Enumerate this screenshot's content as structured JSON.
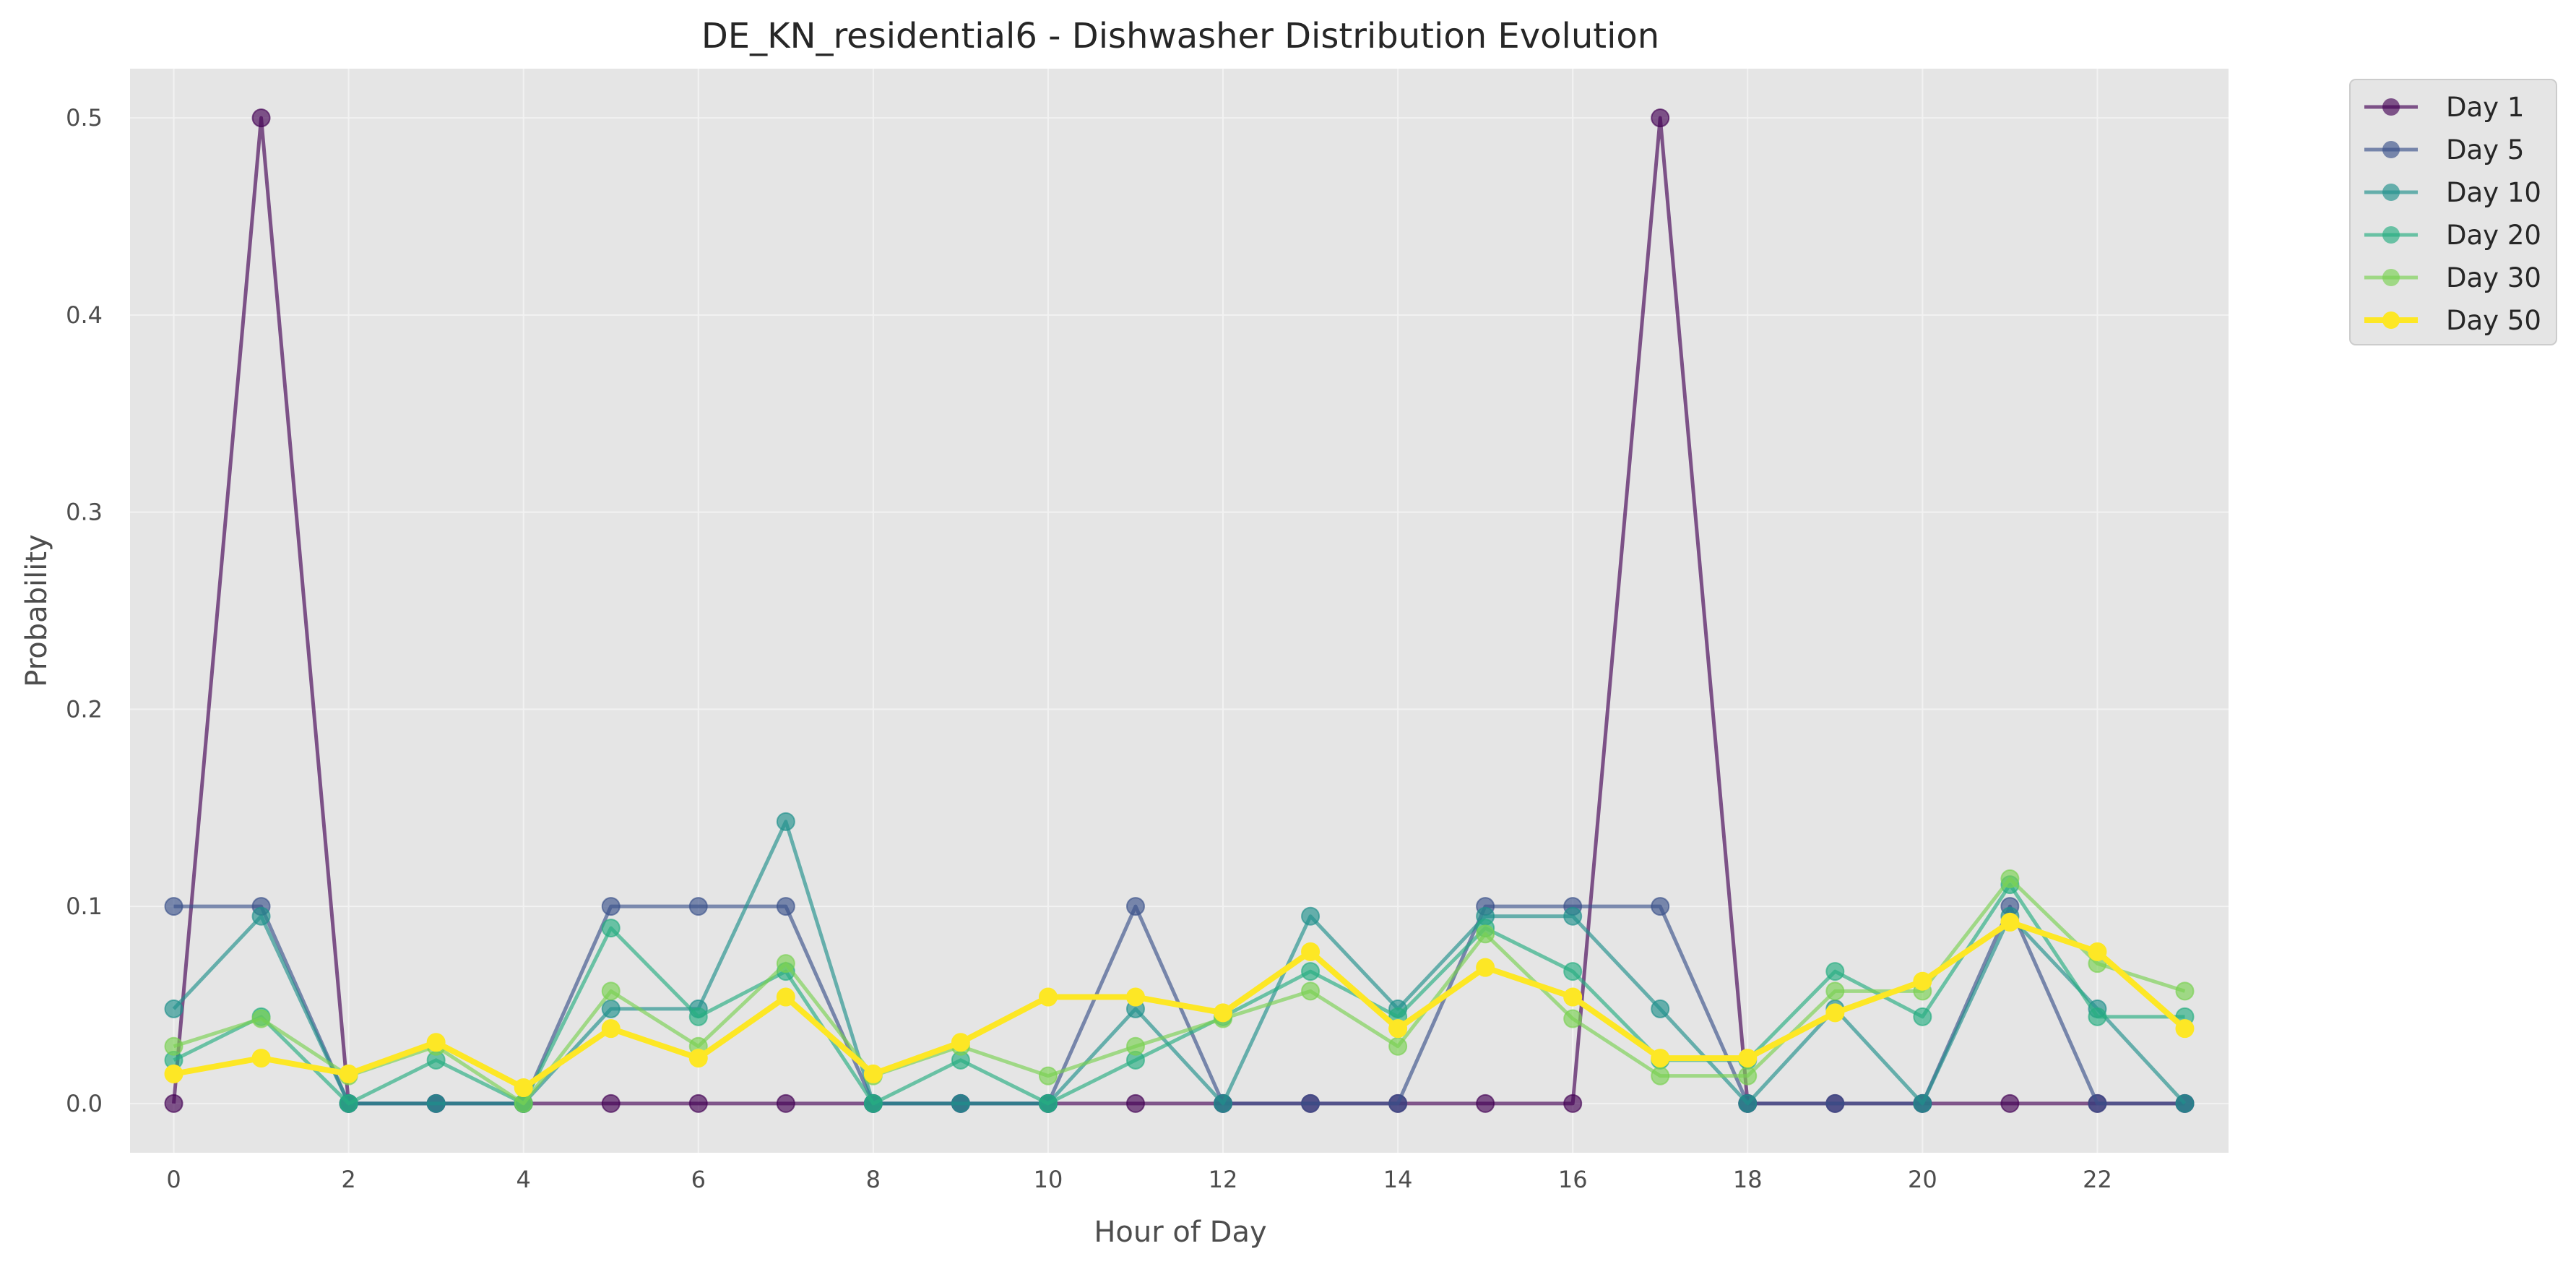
{
  "chart_data": {
    "type": "line",
    "title": "DE_KN_residential6 - Dishwasher Distribution Evolution",
    "xlabel": "Hour of Day",
    "ylabel": "Probability",
    "xlim": [
      -0.5,
      23.5
    ],
    "ylim": [
      -0.025,
      0.525
    ],
    "xticks": [
      0,
      2,
      4,
      6,
      8,
      10,
      12,
      14,
      16,
      18,
      20,
      22
    ],
    "yticks": [
      0.0,
      0.1,
      0.2,
      0.3,
      0.4,
      0.5
    ],
    "grid": true,
    "legend_position": "outside-top-right",
    "x": [
      0,
      1,
      2,
      3,
      4,
      5,
      6,
      7,
      8,
      9,
      10,
      11,
      12,
      13,
      14,
      15,
      16,
      17,
      18,
      19,
      20,
      21,
      22,
      23
    ],
    "series": [
      {
        "name": "Day 1",
        "color": "#440154",
        "values": [
          0,
          0.5,
          0,
          0,
          0,
          0,
          0,
          0,
          0,
          0,
          0,
          0,
          0,
          0,
          0,
          0,
          0,
          0.5,
          0,
          0,
          0,
          0,
          0,
          0
        ]
      },
      {
        "name": "Day 5",
        "color": "#3b528b",
        "values": [
          0.1,
          0.1,
          0,
          0,
          0,
          0.1,
          0.1,
          0.1,
          0,
          0,
          0,
          0.1,
          0,
          0,
          0,
          0.1,
          0.1,
          0.1,
          0,
          0,
          0,
          0.1,
          0,
          0
        ]
      },
      {
        "name": "Day 10",
        "color": "#21918c",
        "values": [
          0.048,
          0.095,
          0,
          0,
          0,
          0.048,
          0.048,
          0.143,
          0,
          0,
          0,
          0.048,
          0,
          0.095,
          0.048,
          0.095,
          0.095,
          0.048,
          0,
          0.048,
          0,
          0.095,
          0.048,
          0
        ]
      },
      {
        "name": "Day 20",
        "color": "#27ad81",
        "values": [
          0.022,
          0.044,
          0,
          0.022,
          0,
          0.089,
          0.044,
          0.067,
          0,
          0.022,
          0,
          0.022,
          0.044,
          0.067,
          0.044,
          0.089,
          0.067,
          0.022,
          0.022,
          0.067,
          0.044,
          0.111,
          0.044,
          0.044
        ]
      },
      {
        "name": "Day 30",
        "color": "#7ad151",
        "values": [
          0.029,
          0.043,
          0.014,
          0.029,
          0,
          0.057,
          0.029,
          0.071,
          0.014,
          0.029,
          0.014,
          0.029,
          0.043,
          0.057,
          0.029,
          0.086,
          0.043,
          0.014,
          0.014,
          0.057,
          0.057,
          0.114,
          0.071,
          0.057
        ]
      },
      {
        "name": "Day 50",
        "color": "#fde725",
        "values": [
          0.015,
          0.023,
          0.015,
          0.031,
          0.008,
          0.038,
          0.023,
          0.054,
          0.015,
          0.031,
          0.054,
          0.054,
          0.046,
          0.077,
          0.038,
          0.069,
          0.054,
          0.023,
          0.023,
          0.046,
          0.062,
          0.092,
          0.077,
          0.038
        ]
      }
    ]
  }
}
